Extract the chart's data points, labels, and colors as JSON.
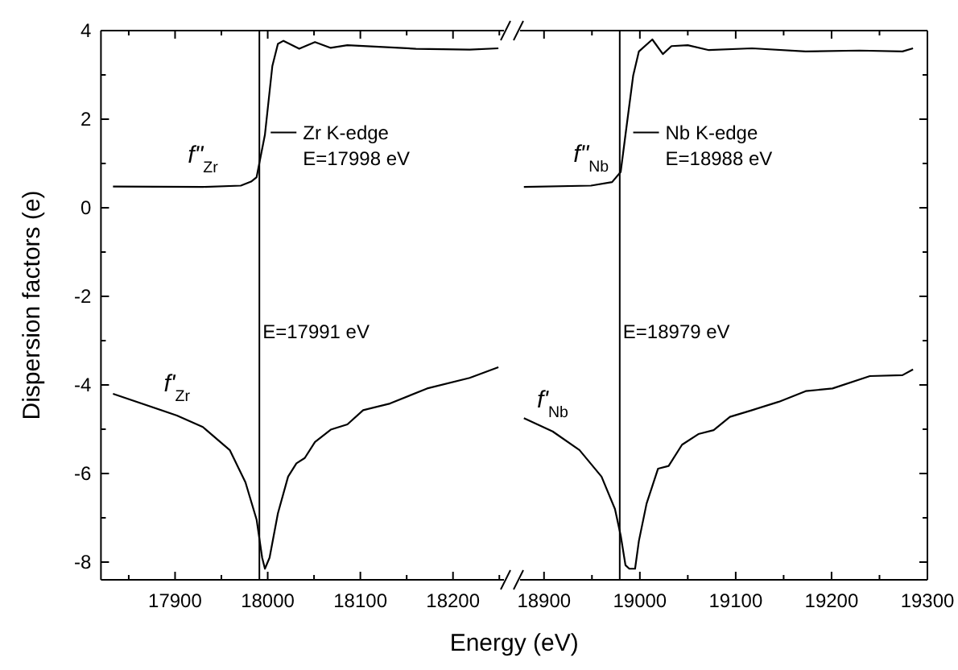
{
  "chart_data": [
    {
      "type": "line",
      "xlabel": "Energy (eV)",
      "ylabel": "Dispersion factors (e)",
      "xlim": [
        17820,
        18255
      ],
      "ylim": [
        -8.4,
        4.0
      ],
      "xticks": [
        {
          "value": 17850,
          "label": null
        },
        17900,
        {
          "value": 17950,
          "label": null
        },
        18000,
        {
          "value": 18050,
          "label": null
        },
        18100,
        {
          "value": 18150,
          "label": null
        },
        18200,
        {
          "value": 18250,
          "label": null
        }
      ],
      "yticks": [
        -8,
        {
          "value": -7,
          "label": null
        },
        -6,
        {
          "value": -5,
          "label": null
        },
        -4,
        {
          "value": -3,
          "label": null
        },
        -2,
        {
          "value": -1,
          "label": null
        },
        0,
        {
          "value": 1,
          "label": null
        },
        2,
        {
          "value": 3,
          "label": null
        },
        4
      ],
      "grid": false,
      "marker": "none",
      "line_style": "solid",
      "series": [
        {
          "name": "f\"$_{Zr}$",
          "color": "#000000",
          "x": [
            17833,
            17930,
            17971,
            17982,
            17988,
            17997,
            18005,
            18011,
            18017,
            18034,
            18051,
            18068,
            18086,
            18160,
            18218,
            18249
          ],
          "values": [
            0.48,
            0.47,
            0.5,
            0.59,
            0.69,
            1.65,
            3.2,
            3.7,
            3.77,
            3.59,
            3.74,
            3.61,
            3.67,
            3.59,
            3.57,
            3.6
          ]
        },
        {
          "name": "f'$_{Zr}$",
          "color": "#000000",
          "x": [
            17833,
            17902,
            17930,
            17959,
            17976,
            17988,
            17994,
            17997,
            18002,
            18011,
            18022,
            18031,
            18040,
            18051,
            18068,
            18086,
            18103,
            18132,
            18172,
            18218,
            18249
          ],
          "values": [
            -4.2,
            -4.69,
            -4.95,
            -5.47,
            -6.2,
            -7.04,
            -7.9,
            -8.15,
            -7.9,
            -6.9,
            -6.07,
            -5.77,
            -5.65,
            -5.29,
            -5.01,
            -4.89,
            -4.57,
            -4.42,
            -4.08,
            -3.84,
            -3.6
          ]
        }
      ],
      "ref_lines": [
        {
          "axis": "x",
          "value": 17991,
          "label": "E=17991 eV",
          "color": "#000000"
        }
      ],
      "annotations": [
        {
          "text": "Zr K-edge\nE=17998 eV",
          "x": 17998,
          "y": 1.7
        }
      ]
    },
    {
      "type": "line",
      "xlim": [
        18875,
        19300
      ],
      "ylim": [
        -8.4,
        4.0
      ],
      "tick_labels": "x",
      "xticks": [
        18900,
        {
          "value": 18950,
          "label": null
        },
        19000,
        {
          "value": 19050,
          "label": null
        },
        19100,
        {
          "value": 19150,
          "label": null
        },
        19200,
        {
          "value": 19250,
          "label": null
        },
        19300
      ],
      "yticks": [
        -8,
        {
          "value": -7,
          "label": null
        },
        -6,
        {
          "value": -5,
          "label": null
        },
        -4,
        {
          "value": -3,
          "label": null
        },
        -2,
        {
          "value": -1,
          "label": null
        },
        0,
        {
          "value": 1,
          "label": null
        },
        2,
        {
          "value": 3,
          "label": null
        },
        4
      ],
      "grid": false,
      "marker": "none",
      "line_style": "solid",
      "series": [
        {
          "name": "f\"$_{Nb}$",
          "color": "#000000",
          "x": [
            18879,
            18949,
            18971,
            18980,
            18985,
            18993,
            18999,
            19013,
            19024,
            19033,
            19050,
            19072,
            19117,
            19173,
            19229,
            19274,
            19285
          ],
          "values": [
            0.47,
            0.5,
            0.58,
            0.81,
            1.65,
            2.98,
            3.53,
            3.8,
            3.47,
            3.65,
            3.67,
            3.56,
            3.6,
            3.53,
            3.55,
            3.53,
            3.6
          ]
        },
        {
          "name": "f'$_{Nb}$",
          "color": "#000000",
          "x": [
            18879,
            18909,
            18937,
            18960,
            18974,
            18980,
            18985,
            18989,
            18995,
            18999,
            19007,
            19019,
            19030,
            19044,
            19061,
            19077,
            19094,
            19117,
            19145,
            19173,
            19201,
            19240,
            19274,
            19285
          ],
          "values": [
            -4.75,
            -5.05,
            -5.47,
            -6.07,
            -6.8,
            -7.4,
            -8.07,
            -8.15,
            -8.15,
            -7.52,
            -6.68,
            -5.89,
            -5.83,
            -5.35,
            -5.11,
            -5.02,
            -4.72,
            -4.57,
            -4.38,
            -4.14,
            -4.08,
            -3.8,
            -3.78,
            -3.65
          ]
        }
      ],
      "ref_lines": [
        {
          "axis": "x",
          "value": 18979,
          "label": "E=18979 eV",
          "color": "#000000"
        }
      ],
      "annotations": [
        {
          "text": "Nb K-edge\nE=18988 eV",
          "x": 18988,
          "y": 1.7
        }
      ]
    }
  ]
}
